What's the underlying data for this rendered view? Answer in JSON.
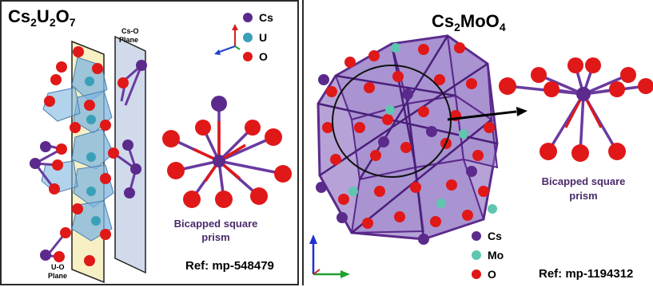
{
  "left": {
    "formula": {
      "main": "Cs",
      "s1": "2",
      "e2": "U",
      "s2": "2",
      "e3": "O",
      "s3": "7"
    },
    "planes": {
      "cs_o": [
        "Cs-O",
        "Plane"
      ],
      "u_o": [
        "U-O",
        "Plane"
      ]
    },
    "legend": [
      {
        "label": "Cs",
        "color": "#5b2a8c"
      },
      {
        "label": "U",
        "color": "#3aa0b8"
      },
      {
        "label": "O",
        "color": "#e01818"
      }
    ],
    "caption": [
      "Bicapped square",
      "prism"
    ],
    "ref": "Ref: mp-548479"
  },
  "right": {
    "formula": {
      "main": "Cs",
      "s1": "2",
      "rest": "MoO",
      "s2": "4"
    },
    "legend": [
      {
        "label": "Cs",
        "color": "#5b2a8c"
      },
      {
        "label": "Mo",
        "color": "#5fc6b0"
      },
      {
        "label": "O",
        "color": "#e01818"
      }
    ],
    "caption": [
      "Bicapped square",
      "prism"
    ],
    "ref": "Ref: mp-1194312"
  },
  "colors": {
    "cs": "#5b2a8c",
    "u": "#3aa0b8",
    "mo": "#5fc6b0",
    "o": "#e01818",
    "bond_cs": "#6a3aa0",
    "uo_plane": "#f6f0c4",
    "cso_plane": "#c8d4e6"
  }
}
